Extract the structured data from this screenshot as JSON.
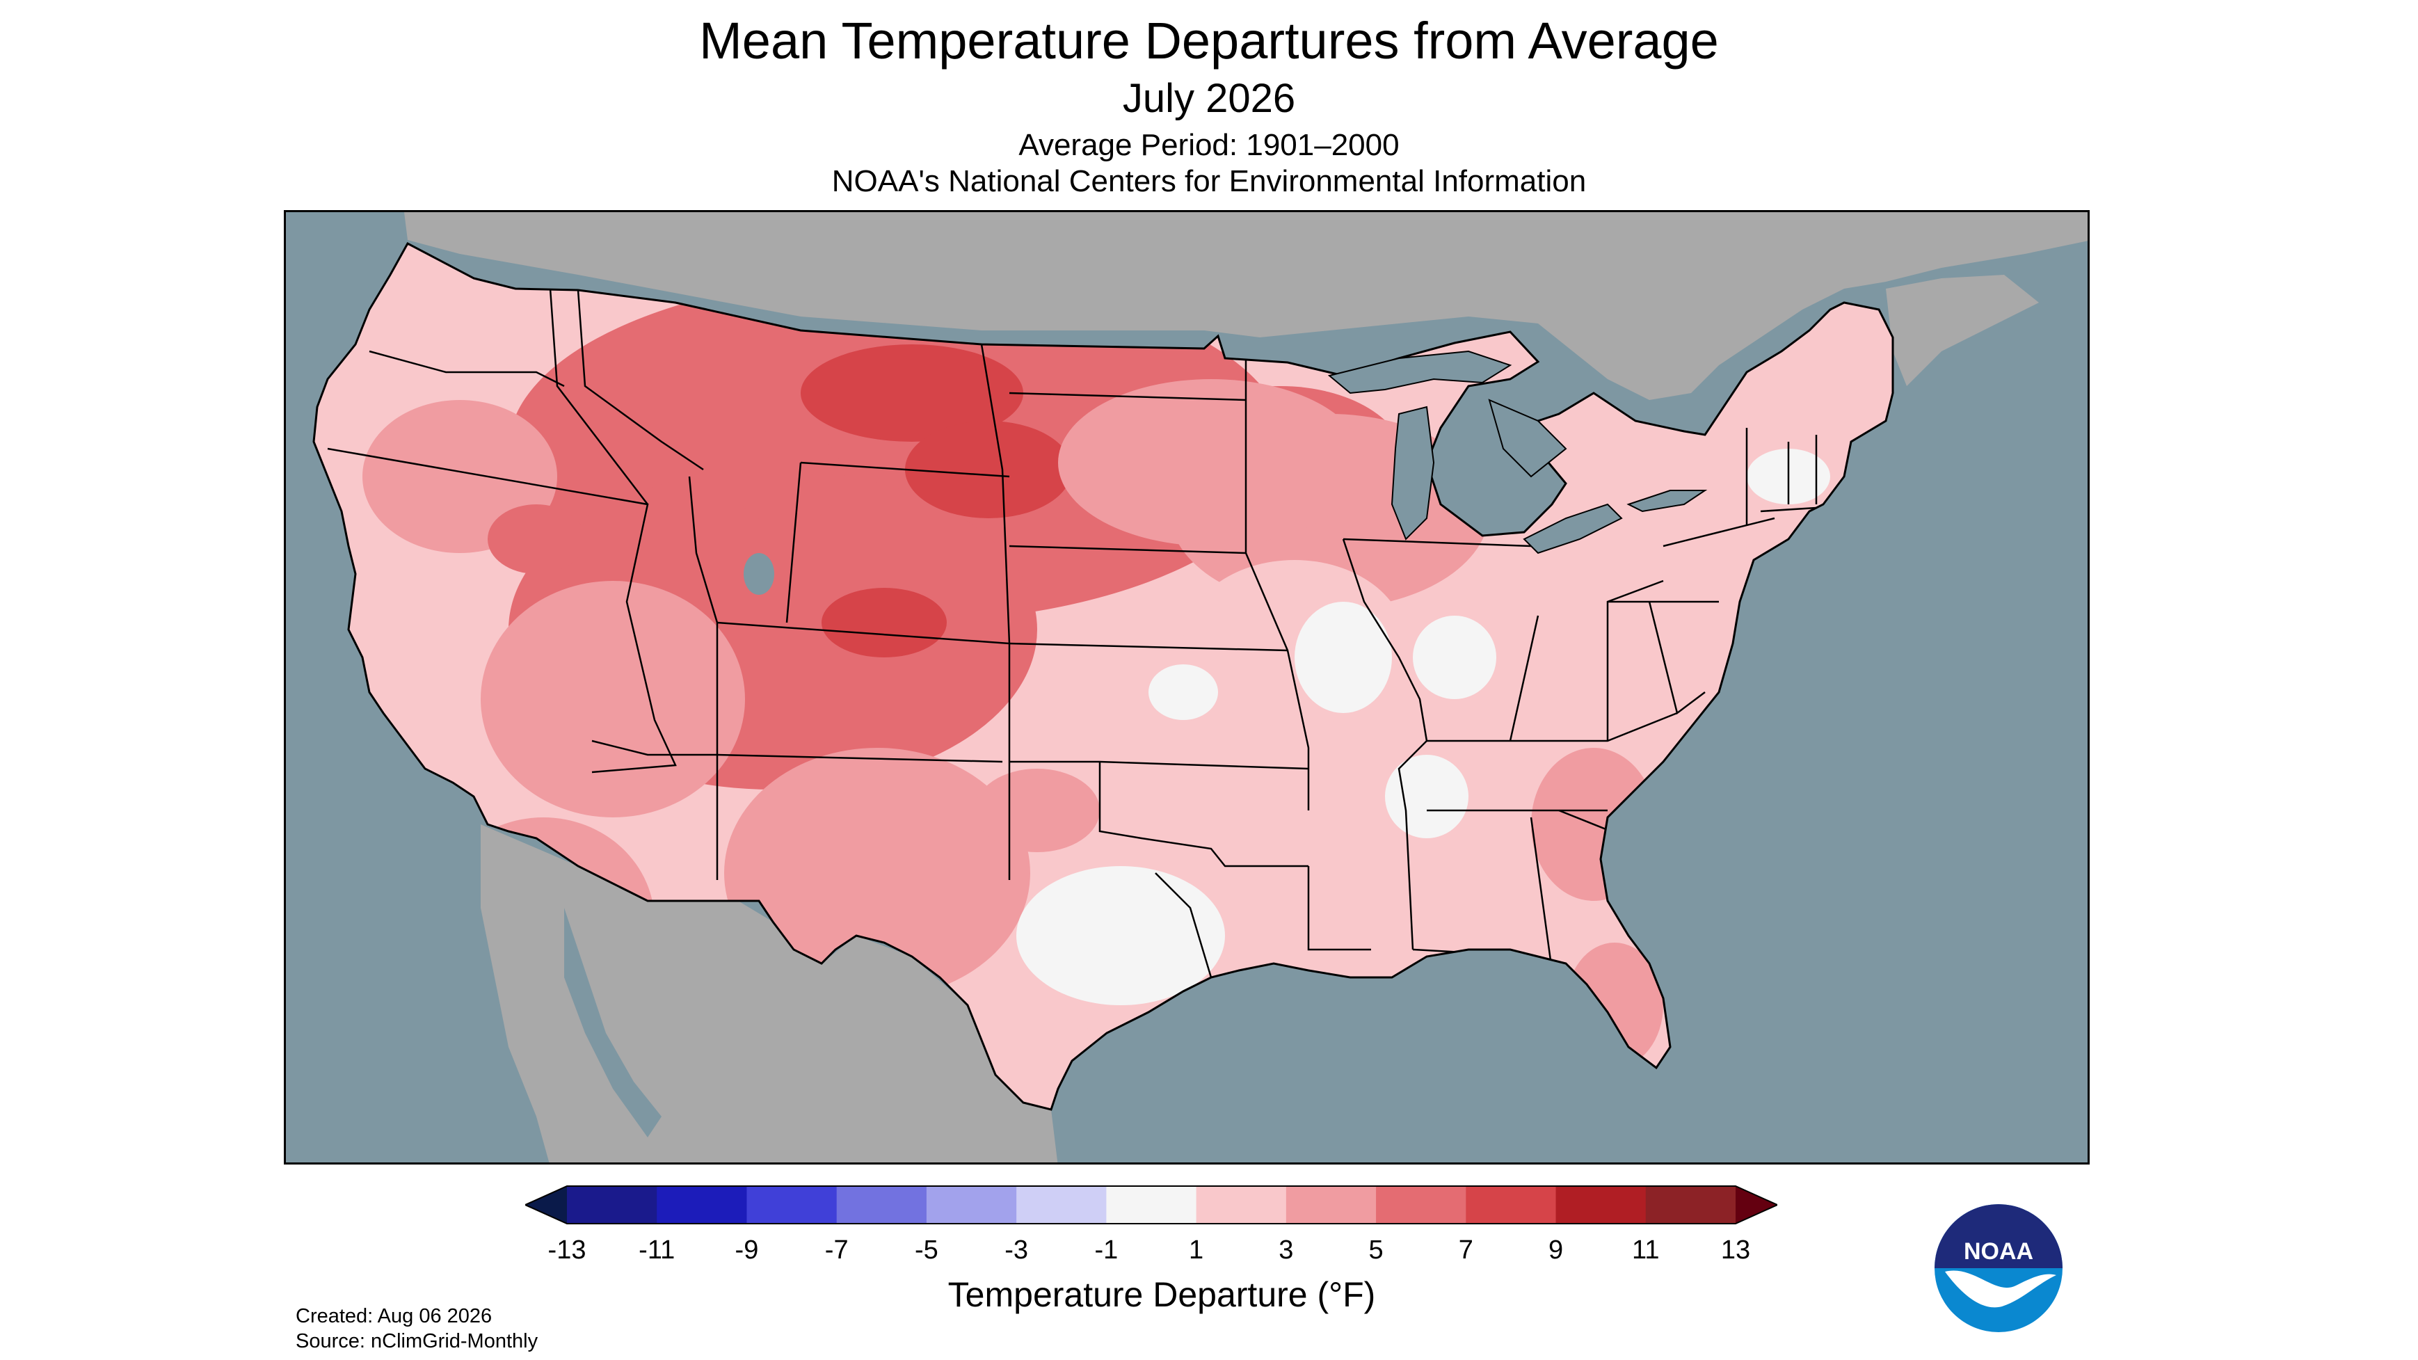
{
  "header": {
    "title": "Mean Temperature Departures from Average",
    "subtitle": "July 2026",
    "period": "Average Period: 1901–2000",
    "source_org": "NOAA's National Centers for Environmental Information"
  },
  "map": {
    "region": "contiguous-us",
    "colors": {
      "ocean": "#7e97a2",
      "land_outside": "#a9a9a9",
      "border": "#000000"
    }
  },
  "legend": {
    "title": "Temperature Departure (°F)",
    "ticks": [
      "-13",
      "-11",
      "-9",
      "-7",
      "-5",
      "-3",
      "-1",
      "1",
      "3",
      "5",
      "7",
      "9",
      "11",
      "13"
    ],
    "bins": [
      {
        "range": "<-13",
        "color": "#0a1a4a"
      },
      {
        "range": "-13 to -11",
        "color": "#1a1a8c"
      },
      {
        "range": "-11 to -9",
        "color": "#1c1cba"
      },
      {
        "range": "-9 to -7",
        "color": "#4040d8"
      },
      {
        "range": "-7 to -5",
        "color": "#7272e0"
      },
      {
        "range": "-5 to -3",
        "color": "#a2a2ec"
      },
      {
        "range": "-3 to -1",
        "color": "#cfcff6"
      },
      {
        "range": "-1 to 1",
        "color": "#f5f5f5"
      },
      {
        "range": "1 to 3",
        "color": "#f9c8cb"
      },
      {
        "range": "3 to 5",
        "color": "#f09ca1"
      },
      {
        "range": "5 to 7",
        "color": "#e46c72"
      },
      {
        "range": "7 to 9",
        "color": "#d64449"
      },
      {
        "range": "9 to 11",
        "color": "#b01e24"
      },
      {
        "range": "11 to 13",
        "color": "#8c2226"
      },
      {
        "range": ">13",
        "color": "#640010"
      }
    ]
  },
  "footer": {
    "created": "Created: Aug 06 2026",
    "source": "Source: nClimGrid-Monthly"
  },
  "logo": {
    "text": "NOAA",
    "icon": "noaa-logo-icon"
  }
}
